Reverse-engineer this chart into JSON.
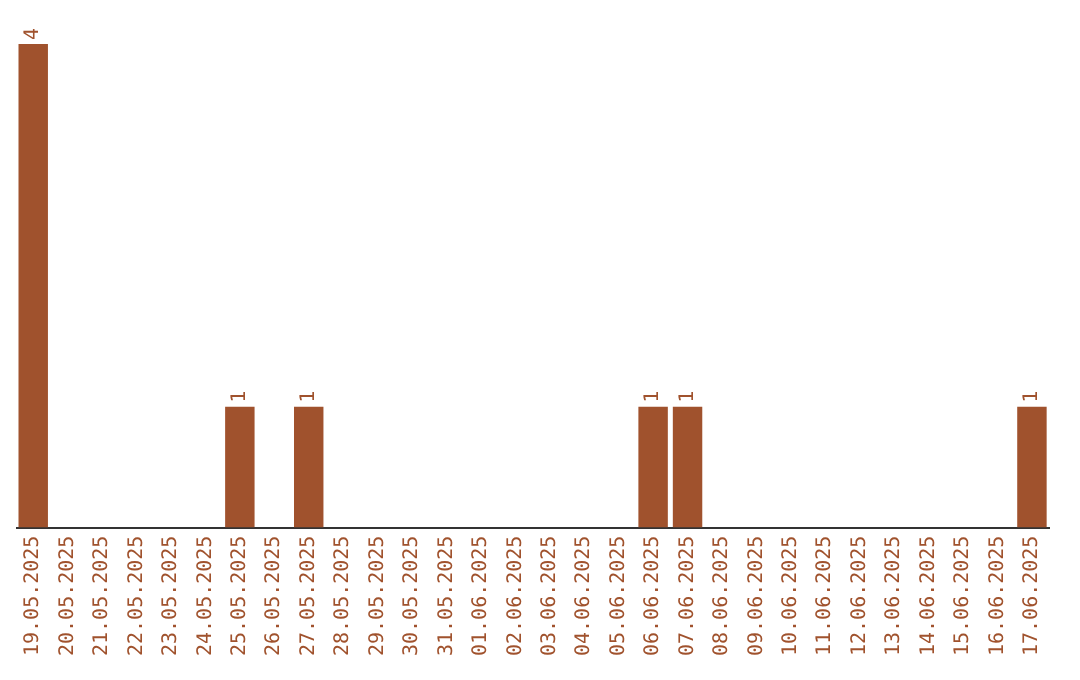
{
  "chart_data": {
    "type": "bar",
    "categories": [
      "19.05.2025",
      "20.05.2025",
      "21.05.2025",
      "22.05.2025",
      "23.05.2025",
      "24.05.2025",
      "25.05.2025",
      "26.05.2025",
      "27.05.2025",
      "28.05.2025",
      "29.05.2025",
      "30.05.2025",
      "31.05.2025",
      "01.06.2025",
      "02.06.2025",
      "03.06.2025",
      "04.06.2025",
      "05.06.2025",
      "06.06.2025",
      "07.06.2025",
      "08.06.2025",
      "09.06.2025",
      "10.06.2025",
      "11.06.2025",
      "12.06.2025",
      "13.06.2025",
      "14.06.2025",
      "15.06.2025",
      "16.06.2025",
      "17.06.2025"
    ],
    "values": [
      4,
      0,
      0,
      0,
      0,
      0,
      1,
      0,
      1,
      0,
      0,
      0,
      0,
      0,
      0,
      0,
      0,
      0,
      1,
      1,
      0,
      0,
      0,
      0,
      0,
      0,
      0,
      0,
      0,
      1
    ],
    "value_labels": [
      "4",
      null,
      null,
      null,
      null,
      null,
      "1",
      null,
      "1",
      null,
      null,
      null,
      null,
      null,
      null,
      null,
      null,
      null,
      "1",
      "1",
      null,
      null,
      null,
      null,
      null,
      null,
      null,
      null,
      null,
      "1"
    ],
    "color": "#a0522d",
    "grid": false,
    "legend": false
  }
}
